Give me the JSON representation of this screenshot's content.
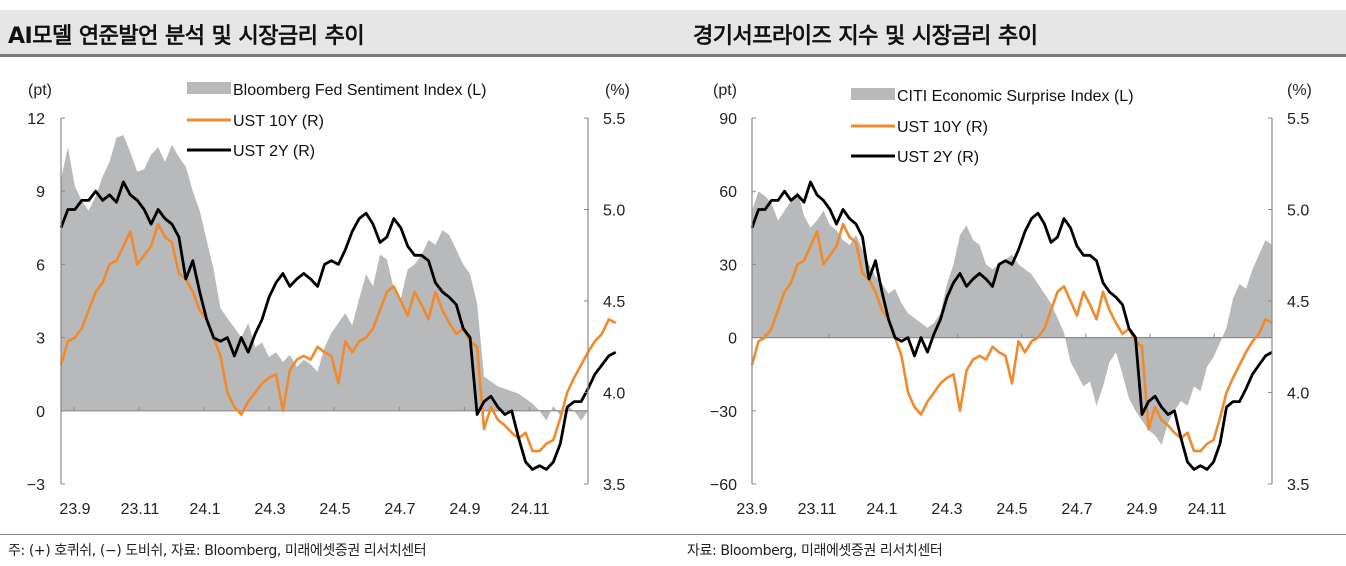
{
  "panels": [
    {
      "title": "AI모델 연준발언 분석 및 시장금리 추이",
      "footer": "주: (+) 호퀴쉬, (−) 도비쉬, 자료: Bloomberg, 미래에셋증권 리서치센터"
    },
    {
      "title": "경기서프라이즈 지수 및 시장금리 추이",
      "footer": "자료: Bloomberg, 미래에셋증권 리서치센터"
    }
  ],
  "colors": {
    "area": "#b8b9bb",
    "ust10y": "#f08a2c",
    "ust2y": "#000000",
    "axis": "#8a8a8a"
  },
  "chart_data": [
    {
      "type": "line",
      "title": "AI모델 연준발언 분석 및 시장금리 추이",
      "left_unit": "(pt)",
      "right_unit": "(%)",
      "ylim_left": [
        -3,
        12
      ],
      "ylim_right": [
        3.5,
        5.5
      ],
      "yticks_left": [
        "12",
        "9",
        "6",
        "3",
        "0",
        "−3"
      ],
      "yticks_right": [
        "5.5",
        "5.0",
        "4.5",
        "4.0",
        "3.5"
      ],
      "xticks": [
        "23.9",
        "23.11",
        "24.1",
        "24.3",
        "24.5",
        "24.7",
        "24.9",
        "24.11"
      ],
      "legend_position": "top",
      "series": [
        {
          "name": "Bloomberg Fed Sentiment Index (L)",
          "kind": "area",
          "axis": "left",
          "values": [
            9.5,
            10.8,
            9.2,
            8.6,
            8.2,
            8.8,
            9.6,
            10.2,
            11.2,
            11.3,
            10.6,
            9.8,
            9.9,
            10.5,
            10.8,
            10.2,
            10.9,
            10.4,
            10.0,
            9.0,
            8.2,
            7.0,
            5.8,
            4.2,
            3.8,
            3.4,
            3.0,
            3.6,
            2.6,
            2.8,
            2.2,
            2.4,
            2.0,
            2.3,
            1.8,
            2.1,
            1.9,
            1.6,
            2.6,
            3.2,
            3.6,
            4.0,
            3.5,
            4.6,
            5.6,
            5.1,
            6.4,
            6.2,
            5.0,
            4.6,
            5.8,
            6.0,
            6.4,
            7.0,
            6.8,
            7.4,
            7.2,
            6.6,
            6.0,
            5.6,
            4.4,
            1.4,
            1.2,
            1.0,
            0.9,
            0.8,
            0.7,
            0.5,
            0.3,
            0.0,
            -0.4,
            0.2,
            -0.2,
            0.2,
            0.0,
            -0.4,
            0.0
          ]
        },
        {
          "name": "UST 10Y (R)",
          "kind": "line",
          "axis": "right",
          "values": [
            4.15,
            4.28,
            4.3,
            4.35,
            4.45,
            4.55,
            4.6,
            4.7,
            4.72,
            4.8,
            4.88,
            4.7,
            4.75,
            4.8,
            4.92,
            4.85,
            4.82,
            4.65,
            4.62,
            4.55,
            4.45,
            4.4,
            4.3,
            4.2,
            4.0,
            3.92,
            3.88,
            3.95,
            4.0,
            4.05,
            4.08,
            4.1,
            3.9,
            4.12,
            4.18,
            4.2,
            4.18,
            4.25,
            4.22,
            4.2,
            4.05,
            4.28,
            4.22,
            4.28,
            4.3,
            4.35,
            4.45,
            4.55,
            4.58,
            4.5,
            4.42,
            4.55,
            4.48,
            4.4,
            4.55,
            4.45,
            4.38,
            4.32,
            4.35,
            4.28,
            4.25,
            3.8,
            3.92,
            3.85,
            3.82,
            3.78,
            3.75,
            3.78,
            3.68,
            3.68,
            3.72,
            3.74,
            3.86,
            4.0,
            4.08,
            4.15,
            4.22,
            4.28,
            4.32,
            4.4,
            4.38
          ]
        },
        {
          "name": "UST 2Y (R)",
          "kind": "line",
          "axis": "right",
          "values": [
            4.9,
            5.0,
            5.0,
            5.05,
            5.05,
            5.1,
            5.05,
            5.08,
            5.04,
            5.15,
            5.08,
            5.05,
            5.0,
            4.92,
            5.0,
            4.95,
            4.92,
            4.85,
            4.62,
            4.72,
            4.55,
            4.4,
            4.3,
            4.28,
            4.3,
            4.2,
            4.3,
            4.22,
            4.32,
            4.4,
            4.52,
            4.6,
            4.65,
            4.58,
            4.62,
            4.65,
            4.62,
            4.58,
            4.7,
            4.72,
            4.7,
            4.78,
            4.88,
            4.95,
            4.98,
            4.92,
            4.82,
            4.85,
            4.95,
            4.9,
            4.8,
            4.75,
            4.75,
            4.72,
            4.6,
            4.55,
            4.52,
            4.48,
            4.35,
            4.3,
            3.88,
            3.95,
            3.98,
            3.92,
            3.88,
            3.9,
            3.75,
            3.62,
            3.58,
            3.6,
            3.58,
            3.62,
            3.72,
            3.92,
            3.95,
            3.95,
            4.02,
            4.1,
            4.15,
            4.2,
            4.22
          ]
        }
      ]
    },
    {
      "type": "line",
      "title": "경기서프라이즈 지수 및 시장금리 추이",
      "left_unit": "(pt)",
      "right_unit": "(%)",
      "ylim_left": [
        -60,
        90
      ],
      "ylim_right": [
        3.5,
        5.5
      ],
      "yticks_left": [
        "90",
        "60",
        "30",
        "0",
        "−30",
        "−60"
      ],
      "yticks_right": [
        "5.5",
        "5.0",
        "4.5",
        "4.0",
        "3.5"
      ],
      "xticks": [
        "23.9",
        "23.11",
        "24.1",
        "24.3",
        "24.5",
        "24.7",
        "24.9",
        "24.11"
      ],
      "legend_position": "top",
      "series": [
        {
          "name": "CITI Economic Surprise Index (L)",
          "kind": "area",
          "axis": "left",
          "values": [
            52,
            60,
            58,
            55,
            48,
            52,
            56,
            60,
            50,
            45,
            48,
            52,
            46,
            44,
            40,
            38,
            42,
            36,
            30,
            25,
            22,
            18,
            20,
            14,
            10,
            8,
            6,
            4,
            6,
            10,
            22,
            30,
            42,
            46,
            40,
            38,
            30,
            28,
            30,
            32,
            34,
            30,
            28,
            26,
            22,
            18,
            14,
            8,
            2,
            -10,
            -15,
            -20,
            -18,
            -28,
            -20,
            -10,
            -6,
            -15,
            -25,
            -30,
            -34,
            -38,
            -40,
            -44,
            -35,
            -30,
            -26,
            -28,
            -20,
            -22,
            -12,
            -8,
            -2,
            4,
            16,
            22,
            20,
            28,
            34,
            40,
            38
          ]
        },
        {
          "name": "UST 10Y (R)",
          "kind": "line",
          "axis": "right",
          "values": [
            4.15,
            4.28,
            4.3,
            4.35,
            4.45,
            4.55,
            4.6,
            4.7,
            4.72,
            4.8,
            4.88,
            4.7,
            4.75,
            4.8,
            4.92,
            4.85,
            4.82,
            4.65,
            4.62,
            4.55,
            4.45,
            4.4,
            4.3,
            4.2,
            4.0,
            3.92,
            3.88,
            3.95,
            4.0,
            4.05,
            4.08,
            4.1,
            3.9,
            4.12,
            4.18,
            4.2,
            4.18,
            4.25,
            4.22,
            4.2,
            4.05,
            4.28,
            4.22,
            4.28,
            4.3,
            4.35,
            4.45,
            4.55,
            4.58,
            4.5,
            4.42,
            4.55,
            4.48,
            4.4,
            4.55,
            4.45,
            4.38,
            4.32,
            4.35,
            4.28,
            4.25,
            3.8,
            3.92,
            3.85,
            3.82,
            3.78,
            3.75,
            3.78,
            3.68,
            3.68,
            3.72,
            3.74,
            3.86,
            4.0,
            4.08,
            4.15,
            4.22,
            4.28,
            4.32,
            4.4,
            4.38
          ]
        },
        {
          "name": "UST 2Y (R)",
          "kind": "line",
          "axis": "right",
          "values": [
            4.9,
            5.0,
            5.0,
            5.05,
            5.05,
            5.1,
            5.05,
            5.08,
            5.04,
            5.15,
            5.08,
            5.05,
            5.0,
            4.92,
            5.0,
            4.95,
            4.92,
            4.85,
            4.62,
            4.72,
            4.55,
            4.4,
            4.3,
            4.28,
            4.3,
            4.2,
            4.3,
            4.22,
            4.32,
            4.4,
            4.52,
            4.6,
            4.65,
            4.58,
            4.62,
            4.65,
            4.62,
            4.58,
            4.7,
            4.72,
            4.7,
            4.78,
            4.88,
            4.95,
            4.98,
            4.92,
            4.82,
            4.85,
            4.95,
            4.9,
            4.8,
            4.75,
            4.75,
            4.72,
            4.6,
            4.55,
            4.52,
            4.48,
            4.35,
            4.3,
            3.88,
            3.95,
            3.98,
            3.92,
            3.88,
            3.9,
            3.75,
            3.62,
            3.58,
            3.6,
            3.58,
            3.62,
            3.72,
            3.92,
            3.95,
            3.95,
            4.02,
            4.1,
            4.15,
            4.2,
            4.22
          ]
        }
      ]
    }
  ]
}
